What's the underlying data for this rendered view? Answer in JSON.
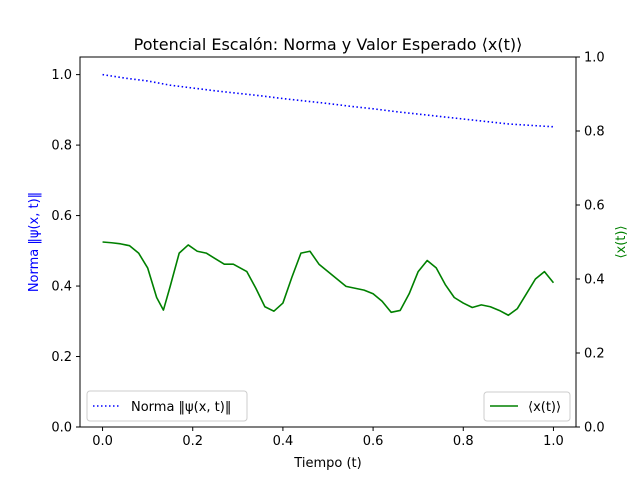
{
  "chart_data": {
    "type": "line",
    "title": "Potencial Escalón: Norma y Valor Esperado ⟨x(t)⟩",
    "xlabel": "Tiempo (t)",
    "ylabel_left": "Norma ‖ψ(x, t)‖",
    "ylabel_right": "⟨x(t)⟩",
    "xlim": [
      -0.05,
      1.05
    ],
    "ylim_left": [
      0,
      1.05
    ],
    "ylim_right": [
      0,
      1.0
    ],
    "x_ticks": [
      "0.0",
      "0.2",
      "0.4",
      "0.6",
      "0.8",
      "1.0"
    ],
    "y_ticks_left": [
      "0.0",
      "0.2",
      "0.4",
      "0.6",
      "0.8",
      "1.0"
    ],
    "y_ticks_right": [
      "0.0",
      "0.2",
      "0.4",
      "0.6",
      "0.8",
      "1.0"
    ],
    "grid": false,
    "legend_left": {
      "placement": "lower-left",
      "label": "Norma ‖ψ(x, t)‖"
    },
    "legend_right": {
      "placement": "lower-right",
      "label": "⟨x(t)⟩"
    },
    "series": [
      {
        "name": "Norma ‖ψ(x, t)‖",
        "axis": "left",
        "color": "#0000ff",
        "style": "dotted",
        "x": [
          0.0,
          0.05,
          0.1,
          0.15,
          0.2,
          0.25,
          0.3,
          0.35,
          0.4,
          0.45,
          0.5,
          0.55,
          0.6,
          0.65,
          0.7,
          0.75,
          0.8,
          0.85,
          0.9,
          0.95,
          1.0
        ],
        "y": [
          1.0,
          0.99,
          0.982,
          0.97,
          0.962,
          0.954,
          0.947,
          0.94,
          0.932,
          0.925,
          0.918,
          0.91,
          0.903,
          0.895,
          0.888,
          0.881,
          0.874,
          0.867,
          0.86,
          0.856,
          0.852
        ]
      },
      {
        "name": "⟨x(t)⟩",
        "axis": "right",
        "color": "#008000",
        "style": "solid",
        "x": [
          0.0,
          0.02,
          0.04,
          0.06,
          0.08,
          0.1,
          0.12,
          0.135,
          0.15,
          0.17,
          0.19,
          0.21,
          0.23,
          0.25,
          0.27,
          0.29,
          0.32,
          0.34,
          0.36,
          0.38,
          0.4,
          0.42,
          0.44,
          0.46,
          0.48,
          0.5,
          0.52,
          0.54,
          0.56,
          0.58,
          0.6,
          0.62,
          0.64,
          0.66,
          0.68,
          0.7,
          0.72,
          0.74,
          0.76,
          0.78,
          0.8,
          0.82,
          0.84,
          0.86,
          0.88,
          0.9,
          0.92,
          0.94,
          0.96,
          0.98,
          1.0
        ],
        "y": [
          0.5,
          0.498,
          0.495,
          0.49,
          0.47,
          0.43,
          0.35,
          0.316,
          0.38,
          0.47,
          0.492,
          0.475,
          0.47,
          0.455,
          0.44,
          0.44,
          0.42,
          0.375,
          0.325,
          0.313,
          0.335,
          0.405,
          0.47,
          0.475,
          0.44,
          0.42,
          0.4,
          0.38,
          0.375,
          0.37,
          0.36,
          0.34,
          0.31,
          0.315,
          0.36,
          0.42,
          0.45,
          0.43,
          0.385,
          0.35,
          0.335,
          0.323,
          0.33,
          0.325,
          0.315,
          0.302,
          0.32,
          0.36,
          0.4,
          0.42,
          0.39
        ]
      }
    ]
  }
}
